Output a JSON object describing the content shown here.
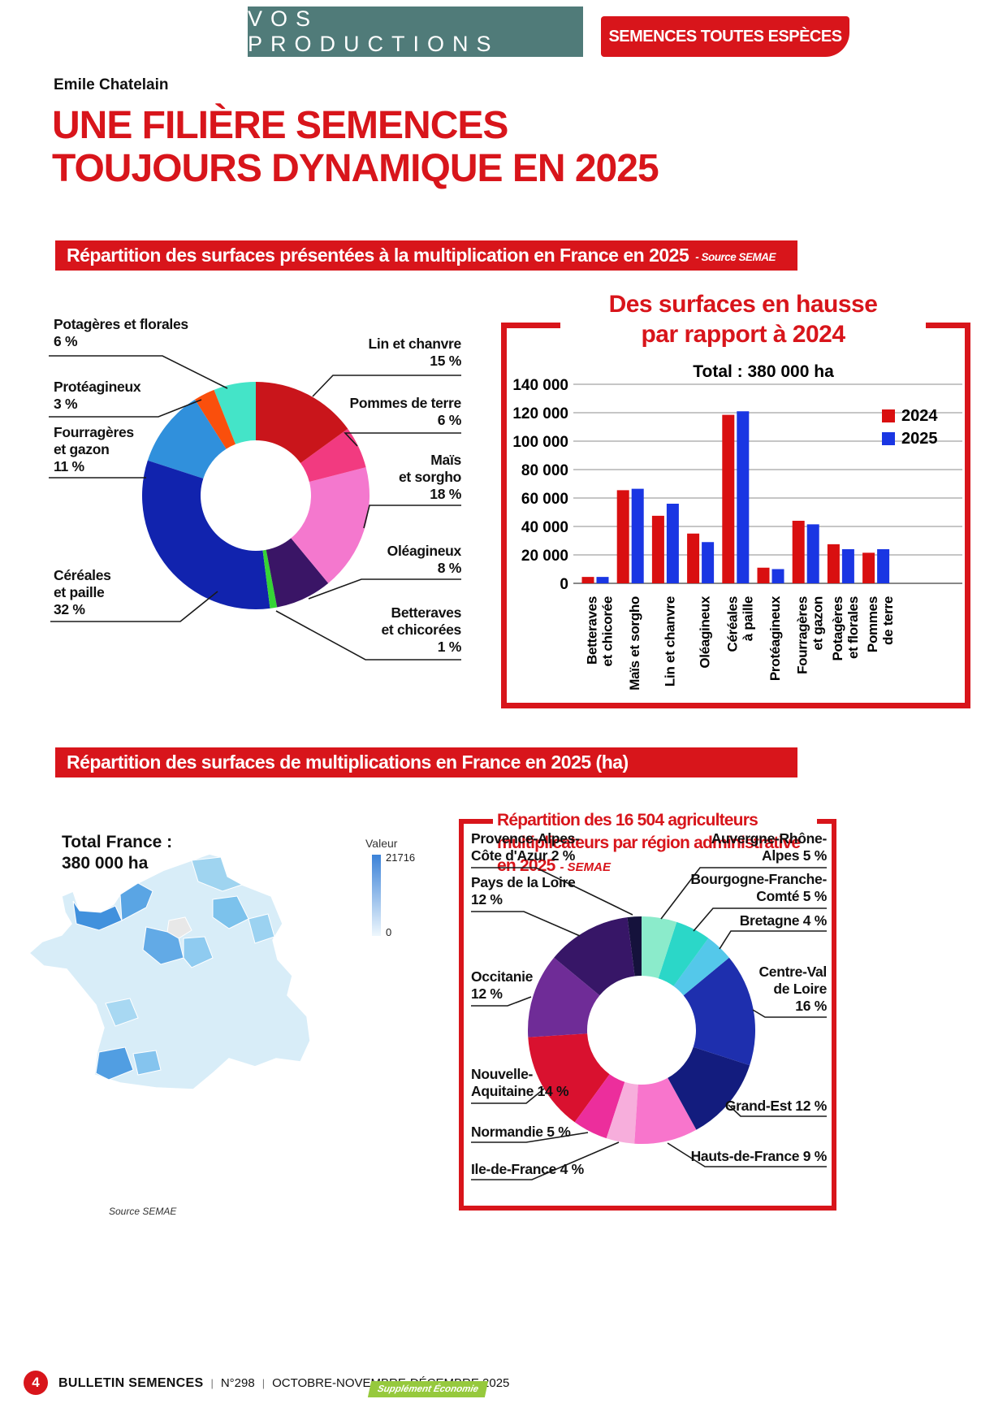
{
  "header": {
    "section_label": "VOS PRODUCTIONS",
    "badge": "SEMENCES TOUTES ESPÈCES",
    "author": "Emile Chatelain",
    "title_lines": [
      "UNE FILIÈRE SEMENCES",
      "TOUJOURS DYNAMIQUE EN 2025"
    ]
  },
  "banner1": {
    "text": "Répartition des surfaces présentées à la multiplication en France en 2025",
    "source": "- Source SEMAE"
  },
  "banner2": {
    "text": "Répartition des surfaces de multiplications en France en 2025 (ha)"
  },
  "colors": {
    "accent_red": "#d8151b",
    "teal": "#507b79",
    "bar_2024": "#d90f10",
    "bar_2025": "#1a36e3",
    "badge_green": "#96c93d"
  },
  "chart_data": [
    {
      "id": "surfaces_donut",
      "type": "pie",
      "title": "Répartition des surfaces présentées à la multiplication en France en 2025",
      "source": "SEMAE",
      "unit": "%",
      "segments": [
        {
          "label": "Lin et chanvre",
          "value": 15,
          "color": "#c9151b",
          "label_lines": [
            "Lin et chanvre",
            "15 %"
          ]
        },
        {
          "label": "Pommes de terre",
          "value": 6,
          "color": "#f23a80",
          "label_lines": [
            "Pommes de terre",
            "6 %"
          ]
        },
        {
          "label": "Maïs et sorgho",
          "value": 18,
          "color": "#f478ce",
          "label_lines": [
            "Maïs",
            "et sorgho",
            "18 %"
          ]
        },
        {
          "label": "Oléagineux",
          "value": 8,
          "color": "#3a1566",
          "label_lines": [
            "Oléagineux",
            "8 %"
          ]
        },
        {
          "label": "Betteraves et chicorées",
          "value": 1,
          "color": "#35d435",
          "label_lines": [
            "Betteraves",
            "et chicorées",
            "1 %"
          ]
        },
        {
          "label": "Céréales et paille",
          "value": 32,
          "color": "#1123ae",
          "label_lines": [
            "Céréales",
            "et paille",
            "32 %"
          ]
        },
        {
          "label": "Fourragères et gazon",
          "value": 11,
          "color": "#3090dc",
          "label_lines": [
            "Fourragères",
            "et gazon",
            "11 %"
          ]
        },
        {
          "label": "Protéagineux",
          "value": 3,
          "color": "#fa4f0c",
          "label_lines": [
            "Protéagineux",
            "3 %"
          ]
        },
        {
          "label": "Potagères et florales",
          "value": 6,
          "color": "#44e4c8",
          "label_lines": [
            "Potagères et florales",
            "6 %"
          ]
        }
      ]
    },
    {
      "id": "surfaces_bars",
      "type": "bar",
      "title": "Des surfaces en hausse par rapport à 2024",
      "title_lines": [
        "Des surfaces en hausse",
        "par rapport à 2024"
      ],
      "subtitle": "Total : 380 000 ha",
      "categories": [
        "Betteraves|et chicorée",
        "Maïs et sorgho",
        "Lin et chanvre",
        "Oléagineux",
        "Céréales|à paille",
        "Protéagineux",
        "Fourragères|et gazon",
        "Potagères|et florales",
        "Pommes|de terre"
      ],
      "series": [
        {
          "name": "2024",
          "color": "#d90f10",
          "values": [
            4500,
            65500,
            47500,
            35000,
            118500,
            11000,
            44000,
            27500,
            21500
          ]
        },
        {
          "name": "2025",
          "color": "#1a36e3",
          "values": [
            4500,
            66500,
            56000,
            29000,
            121000,
            10000,
            41500,
            24000,
            24000
          ]
        }
      ],
      "ylim": [
        0,
        140000
      ],
      "yticks": [
        {
          "value": 0,
          "label": "0"
        },
        {
          "value": 20000,
          "label": "20 000"
        },
        {
          "value": 40000,
          "label": "40 000"
        },
        {
          "value": 60000,
          "label": "60 000"
        },
        {
          "value": 80000,
          "label": "80 000"
        },
        {
          "value": 100000,
          "label": "100 000"
        },
        {
          "value": 120000,
          "label": "120 000"
        },
        {
          "value": 140000,
          "label": "140 000"
        }
      ],
      "legend_position": "top-right",
      "grid": true
    },
    {
      "id": "france_map",
      "type": "heatmap",
      "title": "Répartition des surfaces de multiplications en France en 2025 (ha)",
      "total_lines": [
        "Total France :",
        "380 000 ha"
      ],
      "legend": {
        "title": "Valeur",
        "max": "21716",
        "min": "0"
      },
      "source": "Source SEMAE"
    },
    {
      "id": "regions_donut",
      "type": "pie",
      "title": "Répartition des 16 504 agriculteurs multiplicateurs par région administrative en 2025",
      "title_lines": [
        "Répartition des 16 504 agriculteurs",
        "multiplicateurs par région administrative",
        "en 2025"
      ],
      "source": "- SEMAE",
      "unit": "%",
      "segments": [
        {
          "label": "Auvergne-Rhône-Alpes",
          "value": 5,
          "color": "#8bebcb",
          "label_lines": [
            "Auvergne-Rhône-",
            "Alpes 5 %"
          ]
        },
        {
          "label": "Bourgogne-Franche-Comté",
          "value": 5,
          "color": "#2bd7c8",
          "label_lines": [
            "Bourgogne-Franche-",
            "Comté 5 %"
          ]
        },
        {
          "label": "Bretagne",
          "value": 4,
          "color": "#54c8ea",
          "label_lines": [
            "Bretagne 4 %"
          ]
        },
        {
          "label": "Centre-Val de Loire",
          "value": 16,
          "color": "#1e2fae",
          "label_lines": [
            "Centre-Val",
            "de Loire",
            "16 %"
          ]
        },
        {
          "label": "Grand-Est",
          "value": 12,
          "color": "#131c7e",
          "label_lines": [
            "Grand-Est 12 %"
          ]
        },
        {
          "label": "Hauts-de-France",
          "value": 9,
          "color": "#f875cc",
          "label_lines": [
            "Hauts-de-France 9 %"
          ]
        },
        {
          "label": "Ile-de-France",
          "value": 4,
          "color": "#f7aedc",
          "label_lines": [
            "Ile-de-France 4 %"
          ]
        },
        {
          "label": "Normandie",
          "value": 5,
          "color": "#ec2e9c",
          "label_lines": [
            "Normandie 5 %"
          ]
        },
        {
          "label": "Nouvelle-Aquitaine",
          "value": 14,
          "color": "#d9112f",
          "label_lines": [
            "Nouvelle-",
            "Aquitaine 14 %"
          ]
        },
        {
          "label": "Occitanie",
          "value": 12,
          "color": "#6f2c97",
          "label_lines": [
            "Occitanie",
            "12 %"
          ]
        },
        {
          "label": "Pays de la Loire",
          "value": 12,
          "color": "#371667",
          "label_lines": [
            "Pays de la Loire",
            "12 %"
          ]
        },
        {
          "label": "Provence-Alpes-Côte d'Azur",
          "value": 2,
          "color": "#15123c",
          "label_lines": [
            "Provence-Alpes-",
            "Côte d'Azur 2 %"
          ]
        }
      ]
    }
  ],
  "footer": {
    "page_number": "4",
    "magazine": "BULLETIN SEMENCES",
    "sep": "|",
    "issue": "N°298",
    "date": "OCTOBRE-NOVEMBRE-DÉCEMBRE 2025",
    "supplement": "Supplément Économie"
  }
}
